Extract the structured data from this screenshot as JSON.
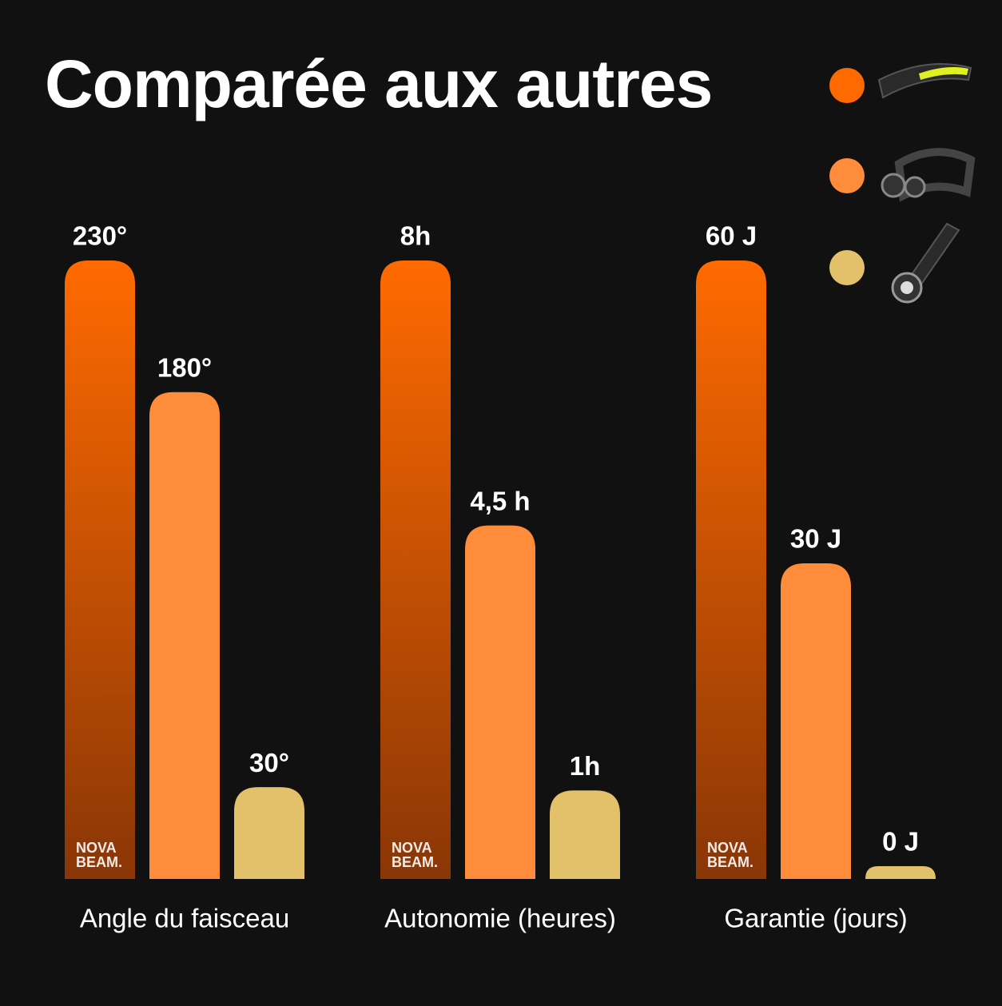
{
  "chart_data": {
    "type": "bar",
    "title": "Comparée aux autres",
    "categories": [
      "Angle du faisceau",
      "Autonomie (heures)",
      "Garantie (jours)"
    ],
    "series": [
      {
        "color": "#ff6a00",
        "values": [
          230,
          8,
          60
        ],
        "value_labels": [
          "230°",
          "8h",
          "60 J"
        ]
      },
      {
        "color": "#ff8c3a",
        "values": [
          180,
          4.5,
          30
        ],
        "value_labels": [
          "180°",
          "4,5 h",
          "30 J"
        ]
      },
      {
        "color": "#e3c06a",
        "values": [
          30,
          1,
          0
        ],
        "value_labels": [
          "30°",
          "1h",
          "0 J"
        ]
      }
    ],
    "bar_logo": [
      "NOVA",
      "BEAM."
    ]
  }
}
